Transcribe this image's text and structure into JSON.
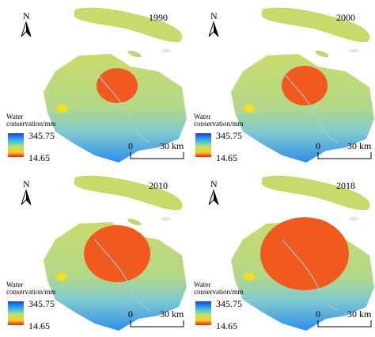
{
  "panels": [
    {
      "year": "1990"
    },
    {
      "year": "2000"
    },
    {
      "year": "2010"
    },
    {
      "year": "2018"
    }
  ],
  "north_label": "N",
  "legend": {
    "title": "Water conservation/mm",
    "max": 345.75,
    "min": 14.65
  },
  "scale_bar": {
    "start": 0,
    "end": "30 km"
  }
}
